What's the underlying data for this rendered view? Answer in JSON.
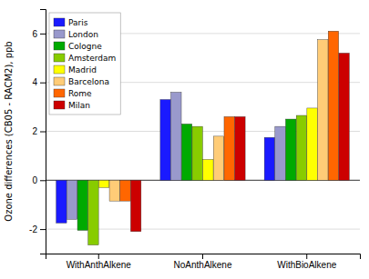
{
  "chart_data": {
    "type": "bar",
    "y_label": "Ozone differences (CB05 - RACM2), ppb",
    "categories": [
      "WithAnthAlkene",
      "NoAnthAlkene",
      "WithBioAlkene"
    ],
    "series": [
      {
        "name": "Paris",
        "color": "#1a1aff",
        "values": [
          -1.75,
          3.3,
          1.75
        ]
      },
      {
        "name": "London",
        "color": "#9999cc",
        "values": [
          -1.6,
          3.6,
          2.2
        ]
      },
      {
        "name": "Cologne",
        "color": "#00aa00",
        "values": [
          -2.05,
          2.3,
          2.5
        ]
      },
      {
        "name": "Amsterdam",
        "color": "#88cc00",
        "values": [
          -2.65,
          2.2,
          2.65
        ]
      },
      {
        "name": "Madrid",
        "color": "#ffff00",
        "values": [
          -0.3,
          0.85,
          2.95
        ]
      },
      {
        "name": "Barcelona",
        "color": "#ffcc77",
        "values": [
          -0.85,
          1.8,
          5.75
        ]
      },
      {
        "name": "Rome",
        "color": "#ff6600",
        "values": [
          -0.85,
          2.6,
          6.1
        ]
      },
      {
        "name": "Milan",
        "color": "#cc0000",
        "values": [
          -2.1,
          2.6,
          5.2
        ]
      }
    ],
    "ylim": [
      -3.0,
      7.0
    ],
    "yticks": [
      -2,
      0,
      2,
      4,
      6
    ],
    "grid": true,
    "legend": "upper left"
  }
}
